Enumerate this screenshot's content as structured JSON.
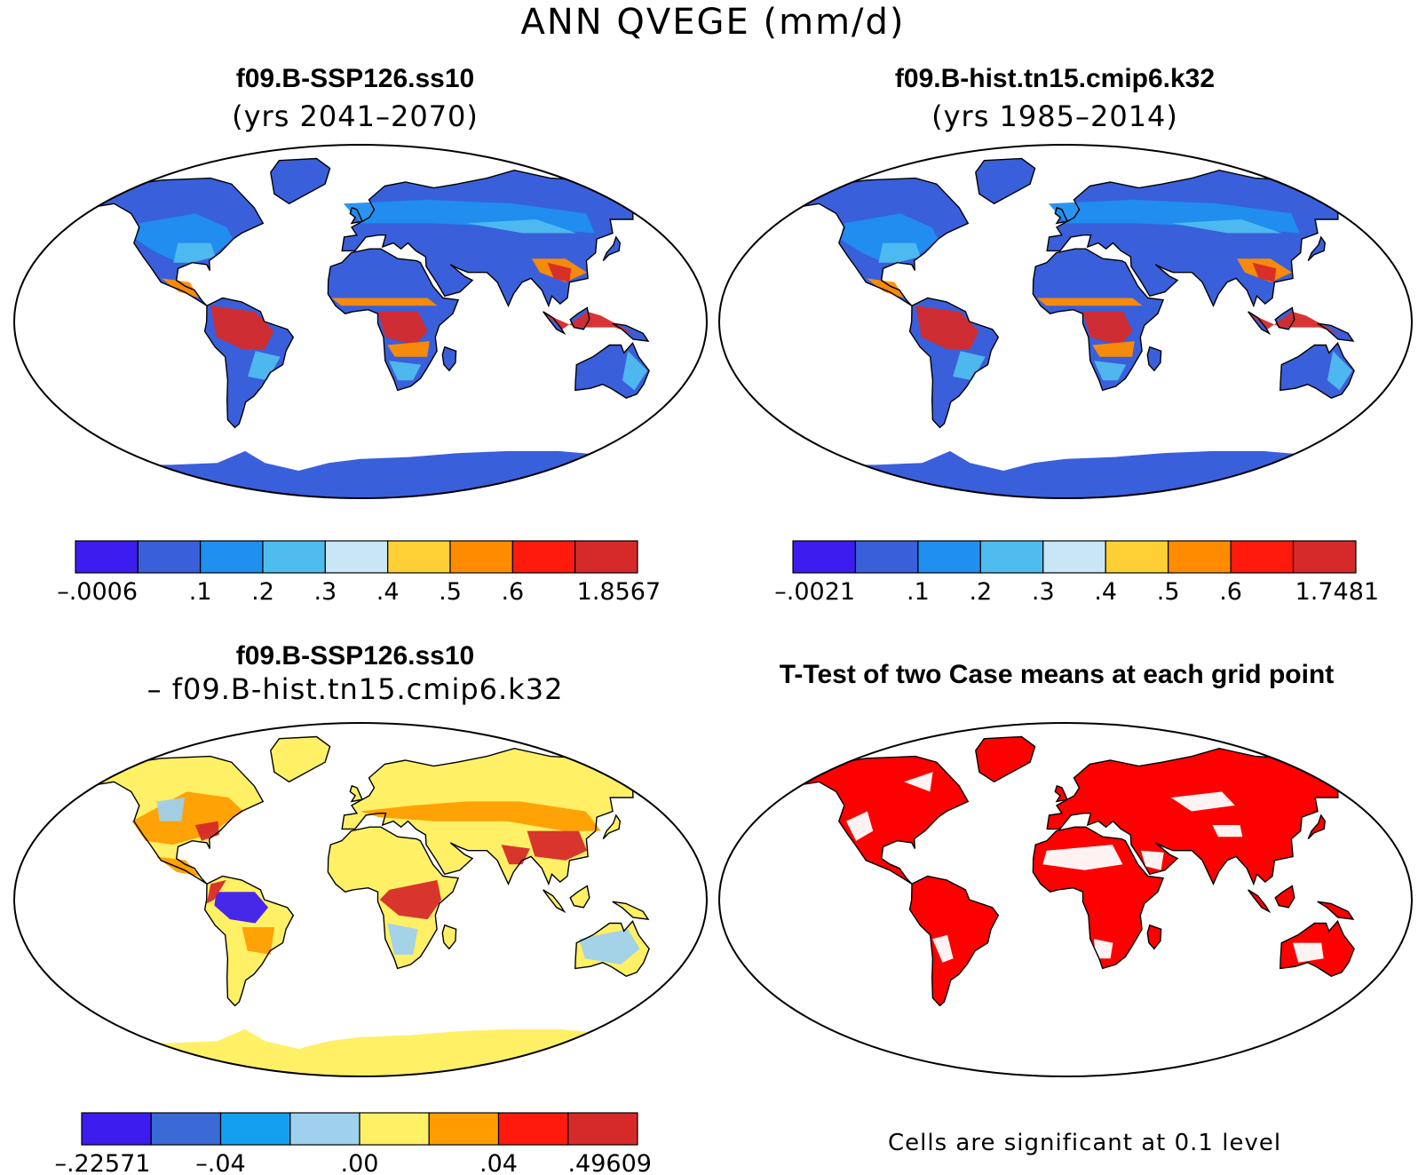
{
  "figure": {
    "title": "ANN QVEGE (mm/d)"
  },
  "panels": [
    {
      "title": "f09.B-SSP126.ss10",
      "subtitle": "(yrs 2041–2070)"
    },
    {
      "title": "f09.B-hist.tn15.cmip6.k32",
      "subtitle": "(yrs 1985–2014)"
    },
    {
      "title": "f09.B-SSP126.ss10",
      "subtitle": "– f09.B-hist.tn15.cmip6.k32"
    },
    {
      "title": "T-Test of two Case means at each grid point",
      "footnote": "Cells are significant at 0.1 level"
    }
  ],
  "colorbars": {
    "top_left": {
      "colors": [
        "#3d1cf0",
        "#3a5fdb",
        "#1f8ff0",
        "#4fbcef",
        "#c9e6f6",
        "#ffd035",
        "#ff8c00",
        "#ff1a0d",
        "#d62a2a"
      ],
      "labels": [
        "-.0006",
        ".1",
        ".2",
        ".3",
        ".4",
        ".5",
        ".6",
        "1.8567"
      ]
    },
    "top_right": {
      "colors": [
        "#3d1cf0",
        "#3a5fdb",
        "#1f8ff0",
        "#4fbcef",
        "#c9e6f6",
        "#ffd035",
        "#ff8c00",
        "#ff1a0d",
        "#d62a2a"
      ],
      "labels": [
        "-.0021",
        ".1",
        ".2",
        ".3",
        ".4",
        ".5",
        ".6",
        "1.7481"
      ]
    },
    "diff": {
      "colors": [
        "#3d1cf0",
        "#3a6ad6",
        "#14a0ef",
        "#9fd0ee",
        "#fff065",
        "#ff9d00",
        "#ff1a0d",
        "#d62a2a"
      ],
      "labels": [
        "-.22571",
        "-.04",
        ".00",
        ".04",
        ".49609"
      ]
    }
  },
  "map_fills": {
    "ssp_mean": {
      "land": "#3a5fdb",
      "antarctica": "#3a5fdb",
      "tropics": "#d62a2a",
      "tropical_edge": "#ff8c00",
      "subtropics": "#4fbcef",
      "midlat": "#1f8ff0"
    },
    "hist_mean": {
      "land": "#3a5fdb",
      "antarctica": "#3a5fdb",
      "tropics": "#d62a2a",
      "tropical_edge": "#ff8c00",
      "subtropics": "#4fbcef",
      "midlat": "#1f8ff0"
    },
    "difference": {
      "land": "#fff065",
      "antarctica": "#fff065",
      "tropics": "#d62a2a",
      "tropical_edge": "#ff9d00",
      "subtropics": "#9fd0ee",
      "midlat": "#ff9d00",
      "amazon": "#3d1cf0"
    },
    "ttest": {
      "land": "#ff0000",
      "antarctica": "#ffffff",
      "gaps": "#ffffff"
    }
  }
}
